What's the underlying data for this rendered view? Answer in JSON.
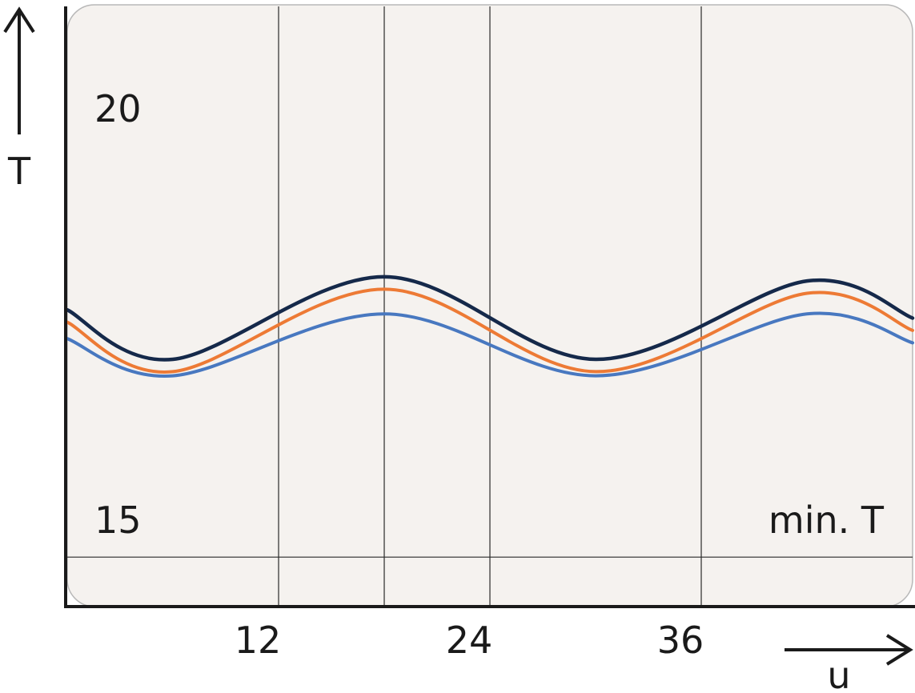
{
  "chart_data": {
    "type": "line",
    "xlabel": "u",
    "ylabel": "T",
    "x_ticks": [
      12,
      24,
      36
    ],
    "y_tick_labels": [
      {
        "value": 20,
        "text": "20"
      },
      {
        "value": 15,
        "text": "15"
      }
    ],
    "reference_line": {
      "value": 14.6,
      "label": "min. T"
    },
    "xlim": [
      0,
      48
    ],
    "ylim": [
      14,
      21.3
    ],
    "grid": "vertical lines at x ticks",
    "series_colors": [
      "#15294a",
      "#ed7a35",
      "#4878c0"
    ],
    "series": [
      {
        "x": [
          0,
          6,
          18,
          30,
          42,
          48
        ],
        "y": [
          17.6,
          17.0,
          18.0,
          17.0,
          17.95,
          17.5
        ]
      },
      {
        "x": [
          0,
          6,
          18,
          30,
          42,
          48
        ],
        "y": [
          17.45,
          16.85,
          17.85,
          16.85,
          17.8,
          17.35
        ]
      },
      {
        "x": [
          0,
          6,
          18,
          30,
          42,
          48
        ],
        "y": [
          17.25,
          16.8,
          17.55,
          16.8,
          17.55,
          17.2
        ]
      }
    ]
  }
}
